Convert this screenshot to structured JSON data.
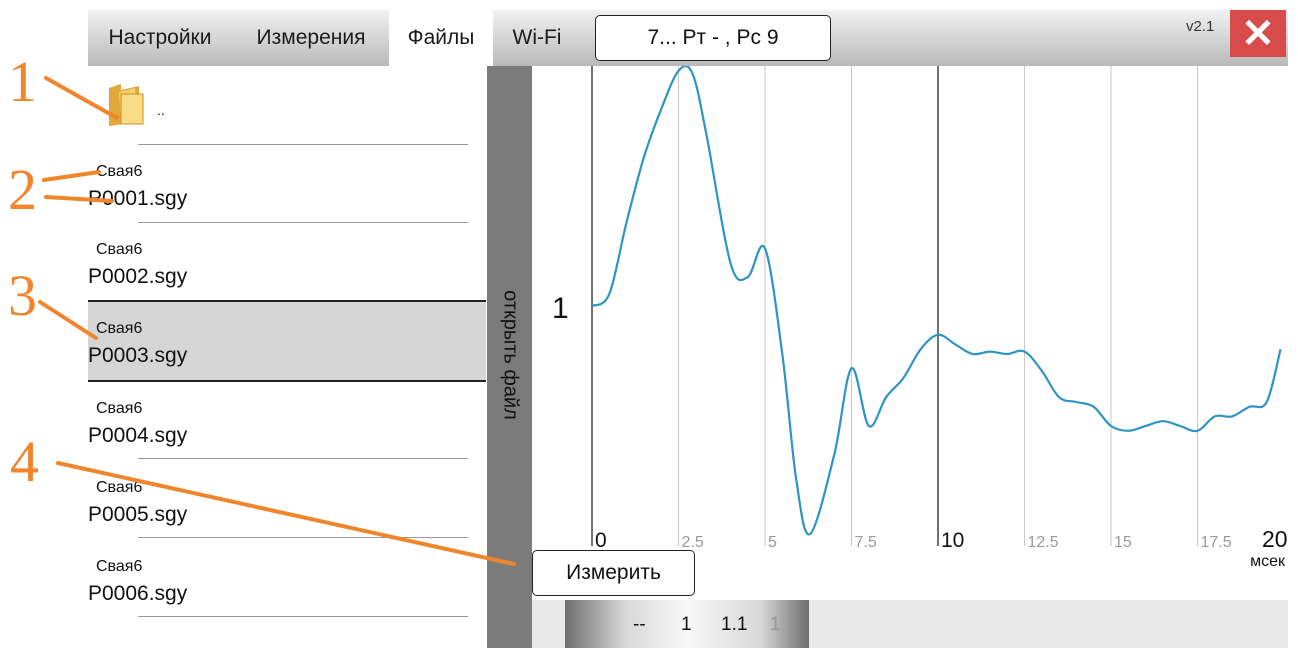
{
  "tabs": {
    "settings": "Настройки",
    "measurements": "Измерения",
    "files": "Файлы",
    "wifi": "Wi-Fi"
  },
  "pile_button": "7... Рт - , Рс 9",
  "version": "v2.1",
  "close_symbol": "✕",
  "file_list": {
    "up_label": "..",
    "items": [
      {
        "pile": "Свая6",
        "file": "P0001.sgy"
      },
      {
        "pile": "Свая6",
        "file": "P0002.sgy"
      },
      {
        "pile": "Свая6",
        "file": "P0003.sgy"
      },
      {
        "pile": "Свая6",
        "file": "P0004.sgy"
      },
      {
        "pile": "Свая6",
        "file": "P0005.sgy"
      },
      {
        "pile": "Свая6",
        "file": "P0006.sgy"
      }
    ],
    "selected_index": 2
  },
  "open_file_label": "открыть файл",
  "measure_button": "Измерить",
  "scale_values": [
    "--",
    "1",
    "1.1",
    "1"
  ],
  "annotations": [
    "1",
    "2",
    "3",
    "4"
  ],
  "colors": {
    "signal": "#2e93c6",
    "accent_annotation": "#f0852c",
    "close": "#d84b4b",
    "sidebar": "#7b7b7b"
  },
  "chart_data": {
    "type": "line",
    "channel_label": "1",
    "xlabel": "мсек",
    "x_ticks": [
      "0",
      "2.5",
      "5",
      "7.5",
      "10",
      "12.5",
      "15",
      "17.5",
      "20"
    ],
    "xlim": [
      0,
      20
    ],
    "ylim": [
      -1,
      1
    ],
    "grid": true,
    "series": [
      {
        "x": [
          0,
          0.5,
          1,
          1.5,
          2,
          2.5,
          2.9,
          3.3,
          4,
          4.5,
          5,
          5.5,
          5.9,
          6.3,
          7,
          7.5,
          8,
          8.5,
          9,
          9.5,
          10,
          10.5,
          11,
          11.5,
          12,
          12.5,
          13,
          13.5,
          14,
          14.5,
          15,
          15.5,
          16,
          16.5,
          17,
          17.5,
          18,
          18.5,
          19,
          19.5,
          19.9
        ],
        "y": [
          0.0,
          0.05,
          0.35,
          0.62,
          0.82,
          0.98,
          0.97,
          0.72,
          0.18,
          0.12,
          0.24,
          -0.2,
          -0.72,
          -0.95,
          -0.62,
          -0.26,
          -0.5,
          -0.38,
          -0.3,
          -0.18,
          -0.12,
          -0.16,
          -0.2,
          -0.19,
          -0.2,
          -0.19,
          -0.27,
          -0.38,
          -0.4,
          -0.42,
          -0.5,
          -0.52,
          -0.5,
          -0.48,
          -0.5,
          -0.52,
          -0.46,
          -0.46,
          -0.42,
          -0.4,
          -0.18
        ]
      }
    ]
  }
}
